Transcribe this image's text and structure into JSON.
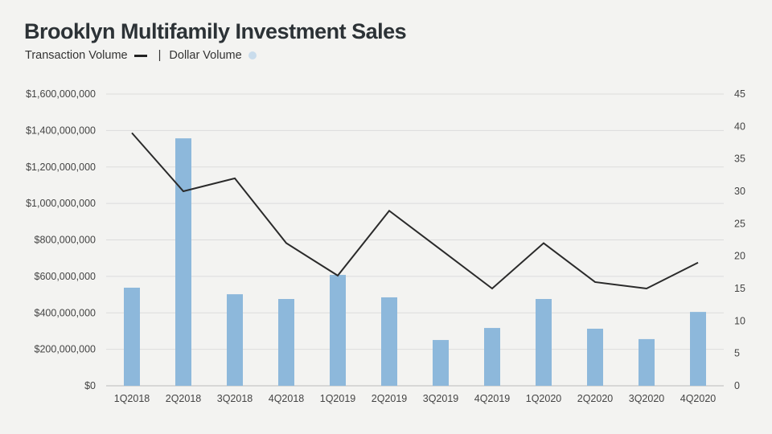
{
  "chart_data": {
    "type": "bar+line",
    "title": "Brooklyn Multifamily Investment Sales",
    "legend": {
      "line_label": "Transaction Volume",
      "separator": "|",
      "bar_label": "Dollar Volume",
      "placement": "top-left"
    },
    "categories": [
      "1Q2018",
      "2Q2018",
      "3Q2018",
      "4Q2018",
      "1Q2019",
      "2Q2019",
      "3Q2019",
      "4Q2019",
      "1Q2020",
      "2Q2020",
      "3Q2020",
      "4Q2020"
    ],
    "series": [
      {
        "name": "Dollar Volume",
        "type": "bar",
        "axis": "left",
        "color": "#8db8db",
        "values": [
          538000000,
          1357000000,
          502000000,
          476000000,
          608000000,
          485000000,
          251000000,
          317000000,
          476000000,
          313000000,
          256000000,
          405000000
        ]
      },
      {
        "name": "Transaction Volume",
        "type": "line",
        "axis": "right",
        "color": "#2a2a2a",
        "values": [
          39,
          30,
          32,
          22,
          17,
          27,
          21,
          15,
          22,
          16,
          15,
          19
        ]
      }
    ],
    "left_axis": {
      "ylim": [
        0,
        1600000000
      ],
      "ticks": [
        "$0",
        "$200,000,000",
        "$400,000,000",
        "$600,000,000",
        "$800,000,000",
        "$1,000,000,000",
        "$1,200,000,000",
        "$1,400,000,000",
        "$1,600,000,000"
      ]
    },
    "right_axis": {
      "ylim": [
        0,
        45
      ],
      "ticks": [
        "0",
        "5",
        "10",
        "15",
        "20",
        "25",
        "30",
        "35",
        "40",
        "45"
      ]
    },
    "grid": true
  }
}
